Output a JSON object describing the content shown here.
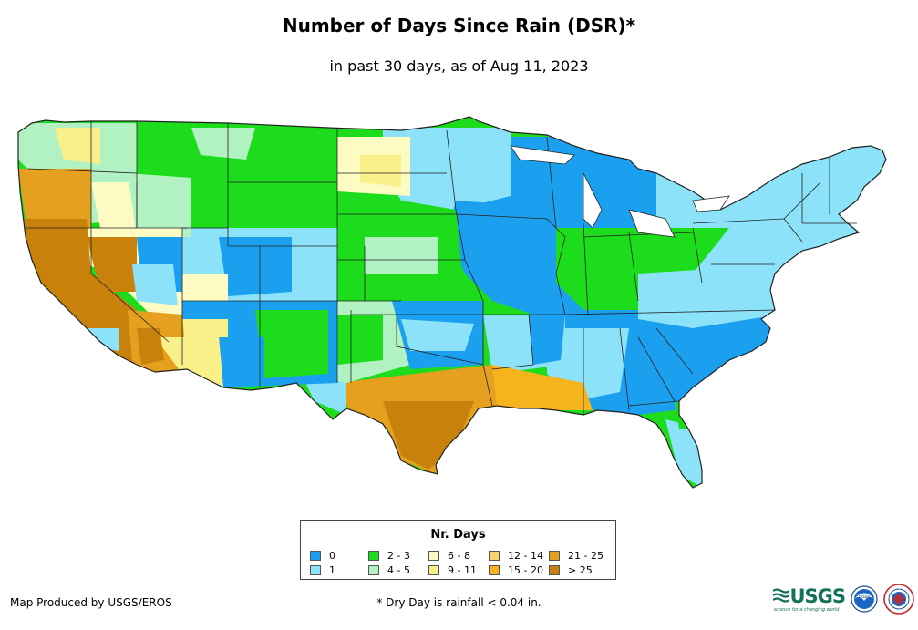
{
  "title": "Number of Days Since Rain (DSR)*",
  "subtitle": "in past 30 days, as of Aug 11, 2023",
  "legend": {
    "title": "Nr. Days",
    "items": [
      {
        "label": "0",
        "color": "#1ba0f0"
      },
      {
        "label": "1",
        "color": "#8be2f9"
      },
      {
        "label": "2 - 3",
        "color": "#1cdc1c"
      },
      {
        "label": "4 - 5",
        "color": "#b2f2c2"
      },
      {
        "label": "6 - 8",
        "color": "#fdfbc2"
      },
      {
        "label": "9 - 11",
        "color": "#faf08a"
      },
      {
        "label": "12 - 14",
        "color": "#f5d46a"
      },
      {
        "label": "15 - 20",
        "color": "#f5b41e"
      },
      {
        "label": "21 - 25",
        "color": "#e6a020"
      },
      {
        "label": "> 25",
        "color": "#c8820c"
      }
    ]
  },
  "credit": "Map Produced by USGS/EROS",
  "footnote": "* Dry Day is rainfall < 0.04 in.",
  "logos": {
    "usgs": "USGS",
    "usgs_tagline": "science for a changing world",
    "noaa": "noaa"
  }
}
